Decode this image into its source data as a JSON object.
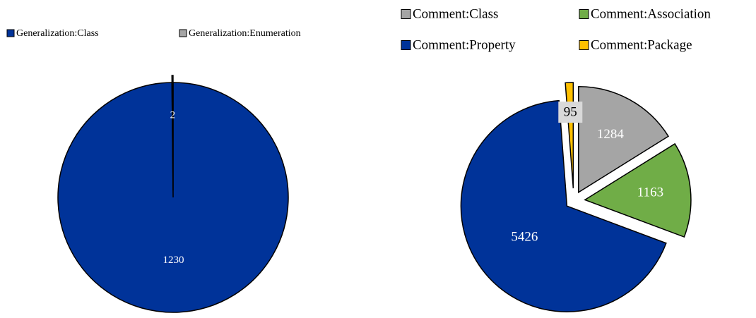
{
  "chart_data": [
    {
      "type": "pie",
      "categories": [
        "Generalization:Class",
        "Generalization:Enumeration"
      ],
      "values": [
        1230,
        2
      ],
      "colors": [
        "#003399",
        "#a5a5a5"
      ]
    },
    {
      "type": "pie",
      "categories": [
        "Comment:Class",
        "Comment:Association",
        "Comment:Property",
        "Comment:Package"
      ],
      "values": [
        1284,
        1163,
        5426,
        95
      ],
      "colors": [
        "#a5a5a5",
        "#70ad47",
        "#003399",
        "#ffc000"
      ]
    }
  ]
}
